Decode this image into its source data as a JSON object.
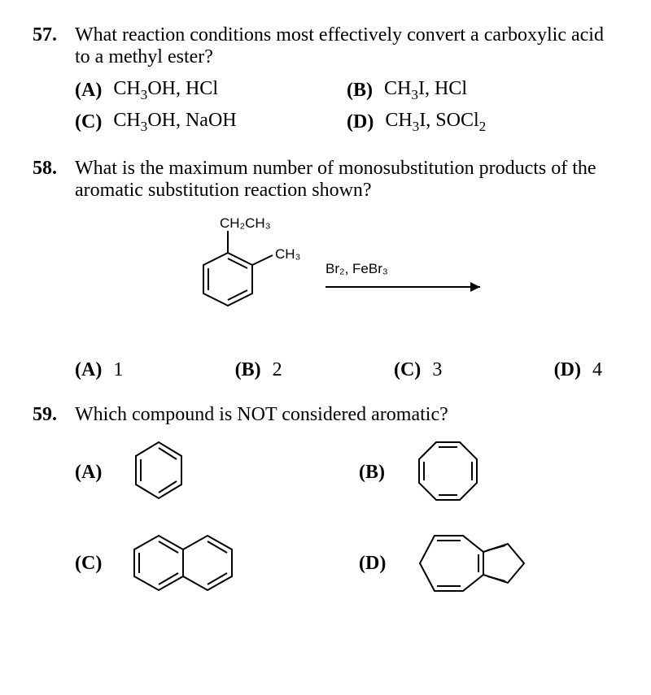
{
  "q57": {
    "number": "57.",
    "text": "What reaction conditions most effectively convert a carboxylic acid to a methyl ester?",
    "opts": {
      "A": {
        "label": "(A)",
        "html": "CH<span class='sub'>3</span>OH, HCl"
      },
      "B": {
        "label": "(B)",
        "html": "CH<span class='sub'>3</span>I, HCl"
      },
      "C": {
        "label": "(C)",
        "html": "CH<span class='sub'>3</span>OH, NaOH"
      },
      "D": {
        "label": "(D)",
        "html": "CH<span class='sub'>3</span>I, SOCl<span class='sub'>2</span>"
      }
    }
  },
  "q58": {
    "number": "58.",
    "text": "What is the maximum number of monosubstitution products of the aromatic substitution reaction shown?",
    "diagram": {
      "sub1": "CH₂CH₃",
      "sub2": "CH₃",
      "reagent": "Br₂, FeBr₃"
    },
    "opts": {
      "A": {
        "label": "(A)",
        "val": "1"
      },
      "B": {
        "label": "(B)",
        "val": "2"
      },
      "C": {
        "label": "(C)",
        "val": "3"
      },
      "D": {
        "label": "(D)",
        "val": "4"
      }
    }
  },
  "q59": {
    "number": "59.",
    "text": "Which compound is NOT considered aromatic?",
    "opts": {
      "A": {
        "label": "(A)"
      },
      "B": {
        "label": "(B)"
      },
      "C": {
        "label": "(C)"
      },
      "D": {
        "label": "(D)"
      }
    },
    "style": {
      "stroke": "#000",
      "stroke_width": 2
    }
  }
}
